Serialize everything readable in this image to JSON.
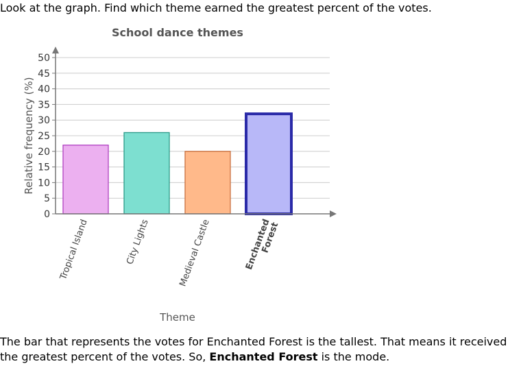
{
  "question": "Look at the graph. Find which theme earned the greatest percent of the votes.",
  "explanation": {
    "part1": "The bar that represents the votes for Enchanted Forest is the tallest. That means it received the greatest percent of the votes. So, ",
    "answer": "Enchanted Forest",
    "part2": " is the mode."
  },
  "chart_data": {
    "type": "bar",
    "title": "School dance themes",
    "xlabel": "Theme",
    "ylabel": "Relative frequency (%)",
    "ylim": [
      0,
      50
    ],
    "yticks": [
      0,
      5,
      10,
      15,
      20,
      25,
      30,
      35,
      40,
      45,
      50
    ],
    "grid": true,
    "categories": [
      "Tropical Island",
      "City Lights",
      "Medieval Castle",
      "Enchanted Forest"
    ],
    "values": [
      22,
      26,
      20,
      32
    ],
    "highlight_index": 3,
    "colors": {
      "fills": [
        "#ecb0f0",
        "#7ddfd0",
        "#ffb98a",
        "#b8b8f8"
      ],
      "strokes": [
        "#b040c0",
        "#2a9a88",
        "#c87040",
        "#2a2aa8"
      ],
      "axis": "#777777",
      "grid": "#cccccc",
      "label": "#555555"
    }
  }
}
